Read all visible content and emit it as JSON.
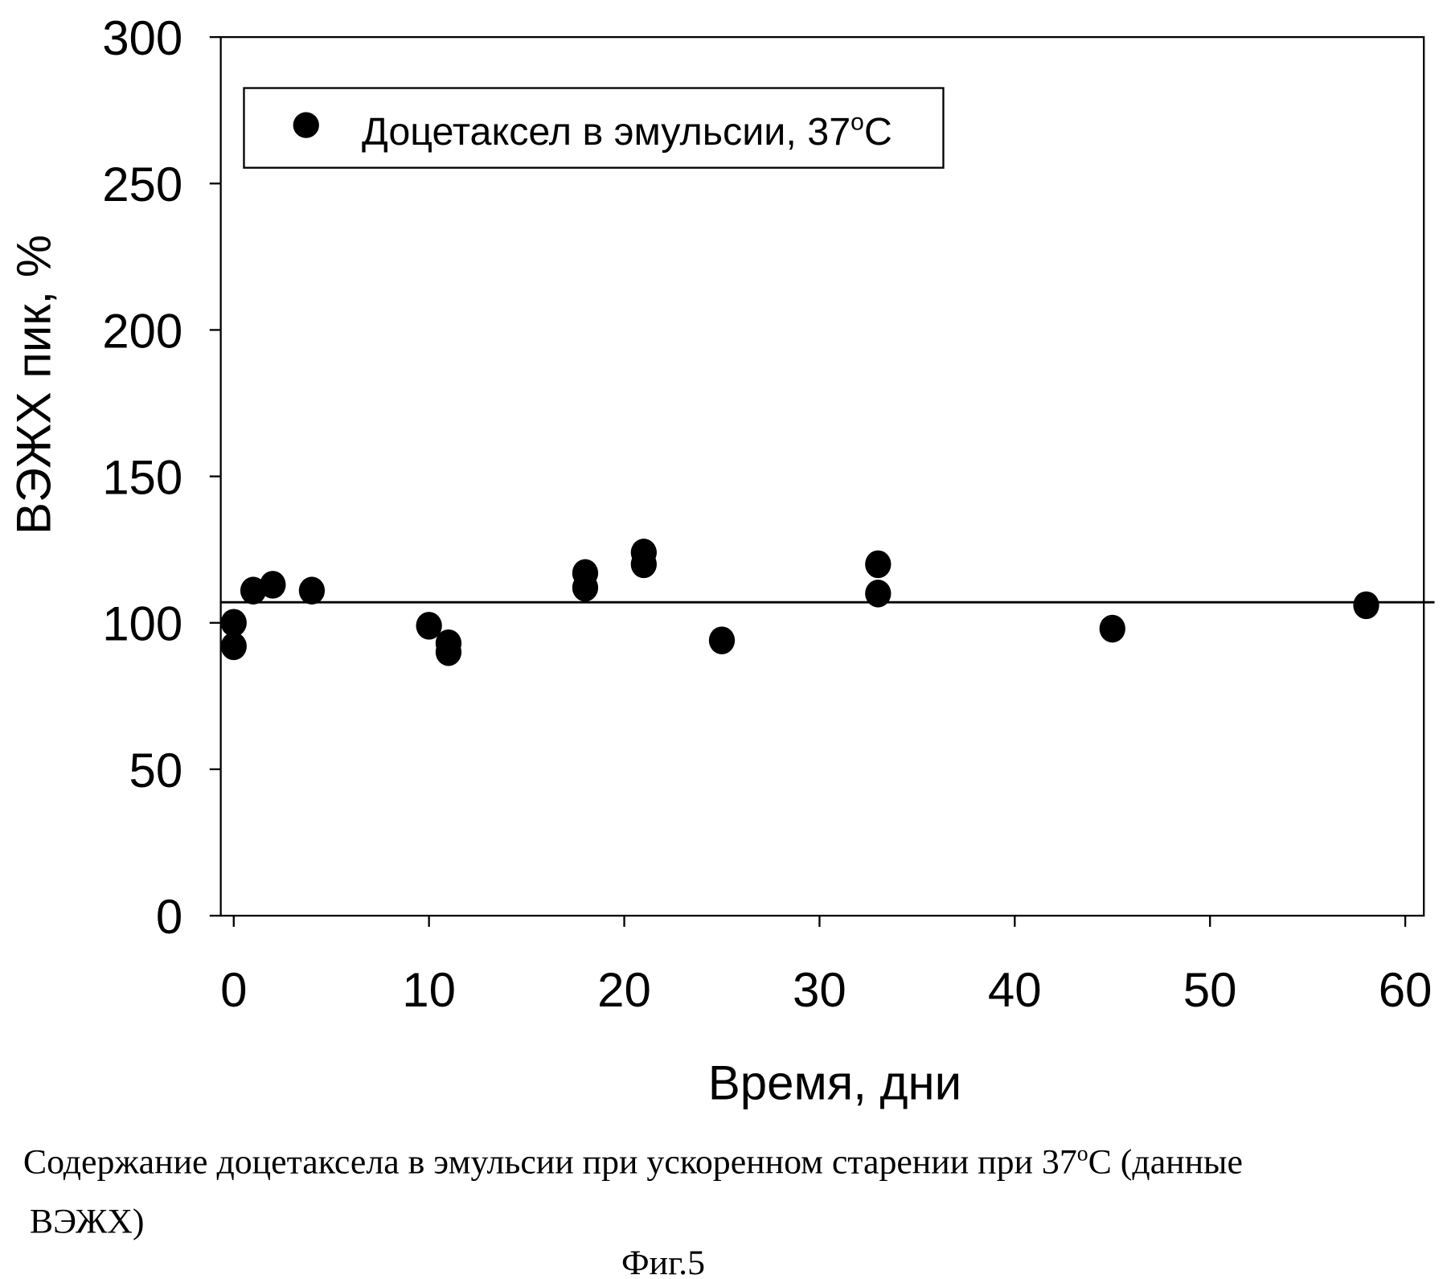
{
  "chart_data": {
    "type": "scatter",
    "xlabel": "Время, дни",
    "ylabel": "ВЭЖХ пик, %",
    "xlim": [
      -1,
      61
    ],
    "ylim": [
      0,
      300
    ],
    "x_ticks": [
      0,
      10,
      20,
      30,
      40,
      50,
      60
    ],
    "y_ticks": [
      0,
      50,
      100,
      150,
      200,
      250,
      300
    ],
    "grid": false,
    "legend_position": "top-left",
    "series": [
      {
        "name": "Доцетаксел в эмульсии, 37",
        "name_sup": "o",
        "name_suffix": "C",
        "points": [
          [
            0,
            100
          ],
          [
            0,
            92
          ],
          [
            1,
            111
          ],
          [
            2,
            113
          ],
          [
            4,
            111
          ],
          [
            10,
            99
          ],
          [
            11,
            93
          ],
          [
            11,
            90
          ],
          [
            18,
            117
          ],
          [
            18,
            112
          ],
          [
            21,
            124
          ],
          [
            21,
            120
          ],
          [
            25,
            94
          ],
          [
            33,
            120
          ],
          [
            33,
            110
          ],
          [
            45,
            98
          ],
          [
            58,
            106
          ]
        ]
      }
    ],
    "reference_line": {
      "y": 107,
      "x_range": [
        -0.7,
        61.5
      ]
    }
  },
  "caption": {
    "line1": "Содержание доцетаксела в эмульсии при ускоренном старении при 37",
    "line1_sup": "o",
    "line1_end": "С (данные",
    "line2": "ВЭЖХ)",
    "figure": "Фиг.5"
  }
}
